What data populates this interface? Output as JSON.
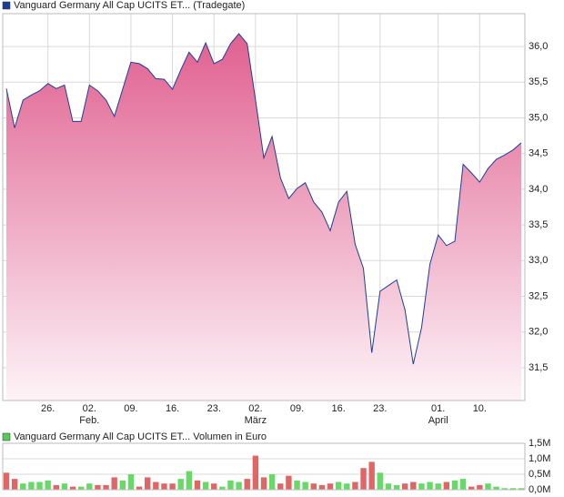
{
  "chart_data": [
    {
      "type": "area",
      "legend_label": "Vanguard Germany All Cap UCITS ET... (Tradegate)",
      "color": "#1d3d9b",
      "fill_gradient": [
        "#e0608f",
        "#fdf3f7"
      ],
      "values": [
        35.41,
        34.86,
        35.25,
        35.32,
        35.38,
        35.48,
        35.41,
        35.46,
        34.95,
        34.95,
        35.46,
        35.38,
        35.25,
        35.02,
        35.4,
        35.78,
        35.76,
        35.69,
        35.55,
        35.54,
        35.4,
        35.67,
        35.92,
        35.78,
        36.05,
        35.76,
        35.82,
        36.04,
        36.18,
        36.04,
        35.25,
        34.44,
        34.74,
        34.16,
        33.87,
        34.01,
        34.09,
        33.82,
        33.68,
        33.42,
        33.82,
        33.97,
        33.23,
        32.89,
        31.71,
        32.57,
        32.65,
        32.73,
        32.31,
        31.55,
        32.06,
        32.95,
        33.36,
        33.21,
        33.27,
        34.35,
        34.23,
        34.1,
        34.29,
        34.42,
        34.48,
        34.55,
        34.65
      ],
      "xlim": [
        -0.44,
        62.44
      ],
      "xticks": [
        {
          "value": 5,
          "label": "26."
        },
        {
          "value": 10,
          "label": "02."
        },
        {
          "value": 15,
          "label": "09."
        },
        {
          "value": 20,
          "label": "16."
        },
        {
          "value": 25,
          "label": "23."
        },
        {
          "value": 30,
          "label": "02."
        },
        {
          "value": 35,
          "label": "09."
        },
        {
          "value": 40,
          "label": "16."
        },
        {
          "value": 45,
          "label": "23."
        },
        {
          "value": 52,
          "label": "01."
        },
        {
          "value": 57,
          "label": "10."
        }
      ],
      "month_labels": [
        {
          "value": 10,
          "label": "Feb."
        },
        {
          "value": 30,
          "label": "März"
        },
        {
          "value": 52,
          "label": "April"
        }
      ],
      "ylim": [
        31.04,
        36.46
      ],
      "yticks": [
        {
          "value": 31.5,
          "label": "31,5"
        },
        {
          "value": 32,
          "label": "32,0"
        },
        {
          "value": 32.5,
          "label": "32,5"
        },
        {
          "value": 33,
          "label": "33,0"
        },
        {
          "value": 33.5,
          "label": "33,5"
        },
        {
          "value": 34,
          "label": "34,0"
        },
        {
          "value": 34.5,
          "label": "34,5"
        },
        {
          "value": 35,
          "label": "35,0"
        },
        {
          "value": 35.5,
          "label": "35,5"
        },
        {
          "value": 36,
          "label": "36,0"
        }
      ],
      "grid": true
    },
    {
      "type": "bar",
      "legend_label": "Vanguard Germany All Cap UCITS ET... Volumen in Euro",
      "legend_color": "#5bc85b",
      "up_color": "#66d966",
      "down_color": "#e06666",
      "values": [
        550000,
        350000,
        200000,
        250000,
        250000,
        300000,
        150000,
        200000,
        100000,
        100000,
        200000,
        150000,
        150000,
        400000,
        300000,
        500000,
        100000,
        400000,
        250000,
        200000,
        200000,
        350000,
        600000,
        300000,
        250000,
        200000,
        100000,
        300000,
        250000,
        350000,
        1100000,
        400000,
        500000,
        200000,
        450000,
        300000,
        250000,
        200000,
        150000,
        200000,
        250000,
        200000,
        250000,
        700000,
        900000,
        550000,
        200000,
        150000,
        200000,
        250000,
        200000,
        250000,
        200000,
        250000,
        300000,
        350000,
        100000,
        150000,
        200000,
        100000,
        50000,
        50000,
        50000
      ],
      "xlim": [
        -0.44,
        62.44
      ],
      "ylim": [
        0,
        1500000
      ],
      "yticks": [
        {
          "value": 0,
          "label": "0,0M"
        },
        {
          "value": 500000,
          "label": "0,5M"
        },
        {
          "value": 1000000,
          "label": "1,0M"
        },
        {
          "value": 1500000,
          "label": "1,5M"
        }
      ],
      "grid": true
    }
  ]
}
